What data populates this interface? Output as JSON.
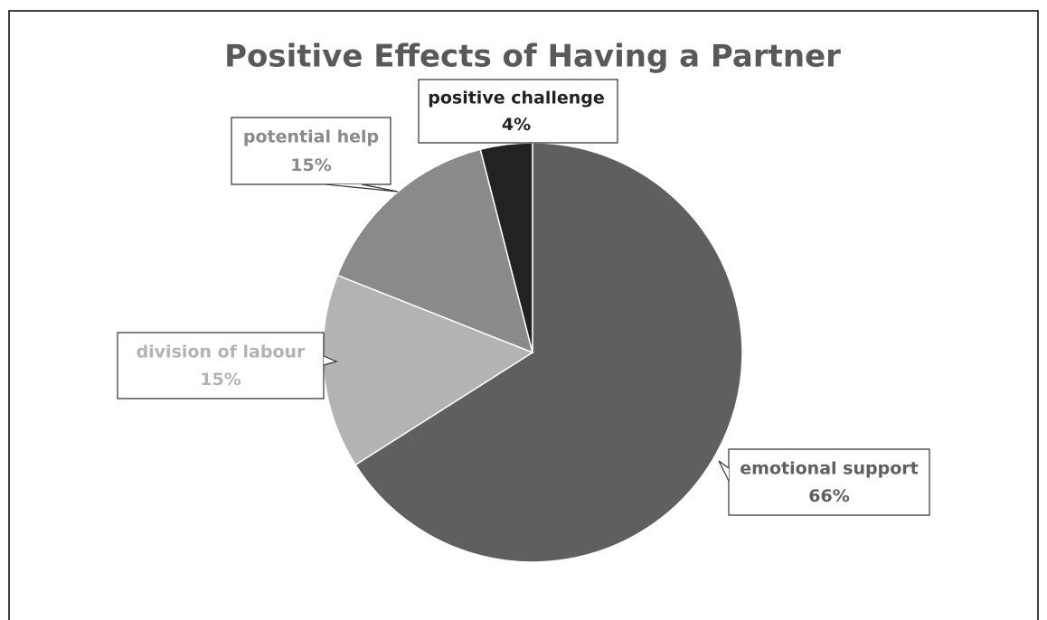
{
  "chart_data": {
    "type": "pie",
    "title": "Positive Effects of Having a Partner",
    "categories": [
      "emotional support",
      "division of labour",
      "potential help",
      "positive challenge"
    ],
    "values": [
      66,
      15,
      15,
      4
    ],
    "value_labels": [
      "66%",
      "15%",
      "15%",
      "4%"
    ],
    "colors": [
      "#5f5f5f",
      "#b3b3b3",
      "#8a8a8a",
      "#222222"
    ]
  }
}
